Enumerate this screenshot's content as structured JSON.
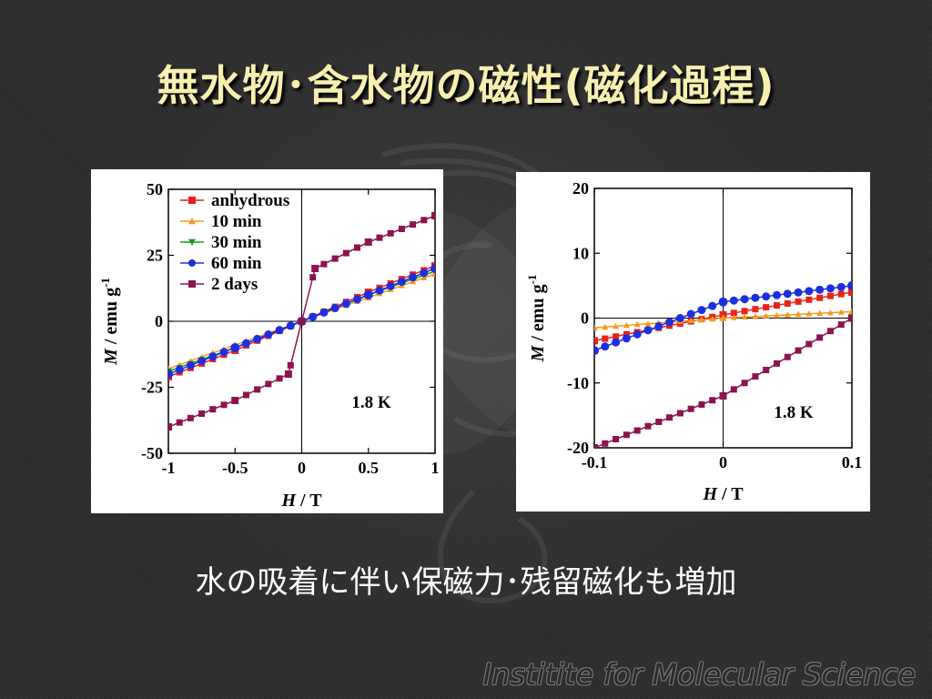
{
  "slide": {
    "title": "無水物･含水物の磁性(磁化過程)",
    "subtitle": "水の吸着に伴い保磁力･残留磁化も増加",
    "footer": "Institite for Molecular Science"
  },
  "colors": {
    "background": "#2d2d2d",
    "title": "#f7efb0",
    "anhydrous": "#e8231c",
    "10 min": "#f39a1e",
    "30 min": "#1a9a1a",
    "60 min": "#1c2fe0",
    "2 days": "#8b1450"
  },
  "chart_data": [
    {
      "type": "scatter",
      "xlabel": "H / T",
      "ylabel": "M / emu g-1",
      "xlim": [
        -1,
        1
      ],
      "ylim": [
        -50,
        50
      ],
      "xticks": [
        "-1",
        "-0.5",
        "0",
        "0.5",
        "1"
      ],
      "yticks": [
        "-50",
        "-25",
        "0",
        "25",
        "50"
      ],
      "legend_position": "top-left",
      "annotation": "1.8 K",
      "series": [
        {
          "name": "anhydrous",
          "x": [
            -1,
            -0.5,
            0,
            0.5,
            1
          ],
          "y": [
            -21,
            -11,
            0,
            11,
            21
          ]
        },
        {
          "name": "10 min",
          "x": [
            -1,
            -0.5,
            0,
            0.5,
            1
          ],
          "y": [
            -18,
            -9,
            0,
            9,
            18
          ]
        },
        {
          "name": "30 min",
          "x": [
            -1,
            -0.5,
            0,
            0.5,
            1
          ],
          "y": [
            -19,
            -10,
            0,
            10,
            19
          ]
        },
        {
          "name": "60 min",
          "x": [
            -1,
            -0.5,
            0,
            0.5,
            1
          ],
          "y": [
            -20,
            -10,
            0,
            10,
            20
          ]
        },
        {
          "name": "2 days",
          "x": [
            -1,
            -0.5,
            -0.1,
            0,
            0.1,
            0.5,
            1
          ],
          "y": [
            -40,
            -30,
            -20,
            0,
            20,
            30,
            40
          ]
        }
      ]
    },
    {
      "type": "scatter",
      "xlabel": "H / T",
      "ylabel": "M / emu g-1",
      "xlim": [
        -0.1,
        0.1
      ],
      "ylim": [
        -20,
        20
      ],
      "xticks": [
        "-0.1",
        "0",
        "0.1"
      ],
      "yticks": [
        "-20",
        "-10",
        "0",
        "10",
        "20"
      ],
      "annotation": "1.8 K",
      "series": [
        {
          "name": "anhydrous",
          "x": [
            -0.1,
            0,
            0.1
          ],
          "y": [
            -3.5,
            0.5,
            4
          ]
        },
        {
          "name": "10 min",
          "x": [
            -0.1,
            0,
            0.1
          ],
          "y": [
            -1.5,
            0,
            1
          ]
        },
        {
          "name": "60 min",
          "x": [
            -0.1,
            0,
            0.1
          ],
          "y": [
            -5,
            2.5,
            5
          ]
        },
        {
          "name": "2 days",
          "x": [
            -0.1,
            0,
            0.1
          ],
          "y": [
            -20,
            -12,
            0
          ]
        }
      ]
    }
  ]
}
